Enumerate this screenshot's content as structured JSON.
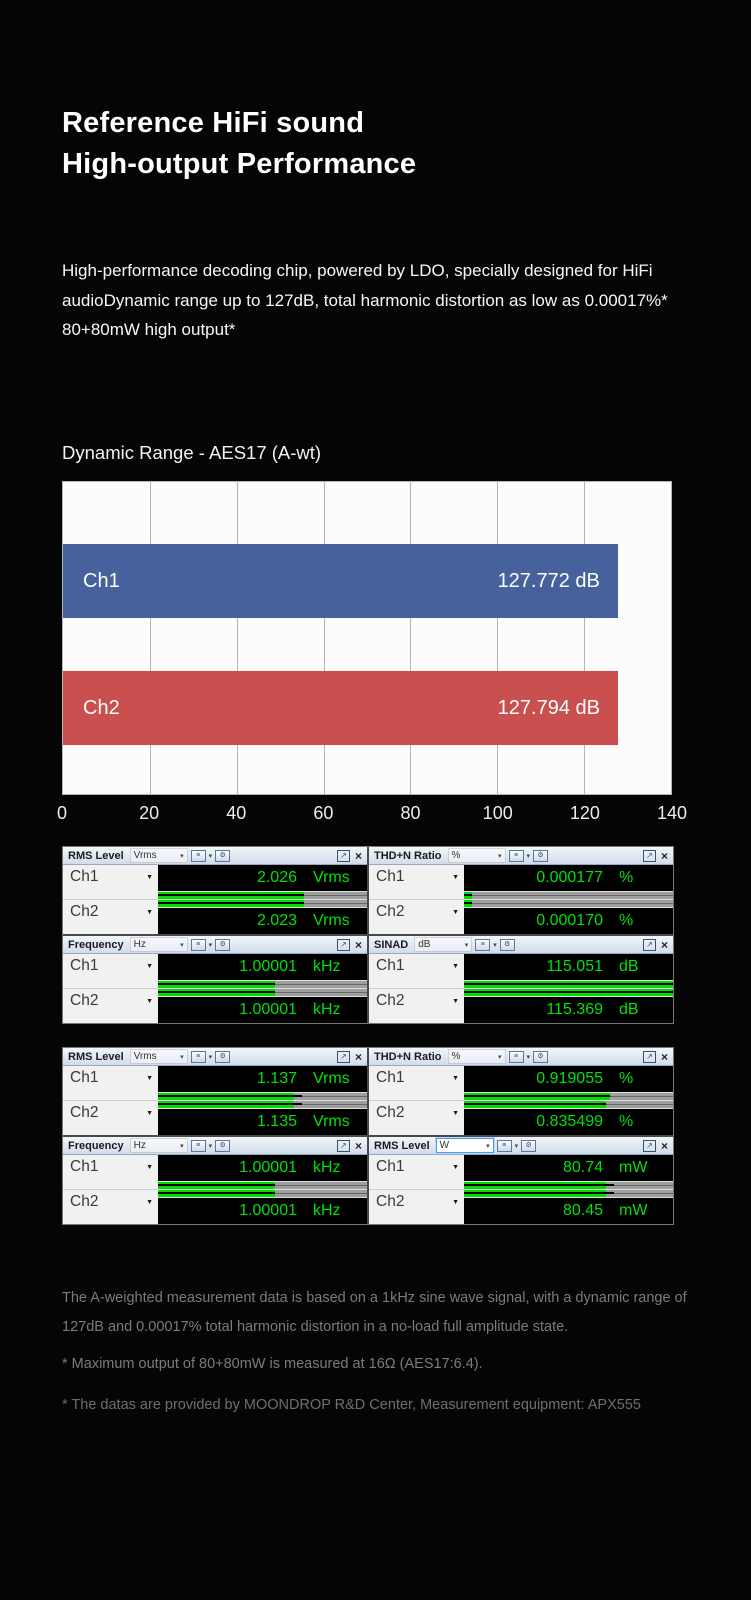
{
  "hero": {
    "title_line1": "Reference HiFi sound",
    "title_line2": "High-output Performance",
    "description": "High-performance decoding chip, powered by LDO, specially designed for HiFi audioDynamic range up to 127dB, total harmonic distortion as low as 0.00017%* 80+80mW high output*"
  },
  "chart_data": {
    "type": "bar",
    "orientation": "horizontal",
    "title": "Dynamic Range - AES17 (A-wt)",
    "categories": [
      "Ch1",
      "Ch2"
    ],
    "values": [
      127.772,
      127.794
    ],
    "value_labels": [
      "127.772 dB",
      "127.794 dB"
    ],
    "bar_colors": [
      "#46619b",
      "#c9504e"
    ],
    "xlabel": "",
    "ylabel": "",
    "xlim": [
      0,
      140
    ],
    "x_ticks": [
      0,
      20,
      40,
      60,
      80,
      100,
      120,
      140
    ],
    "grid": true,
    "plot_bg": "#fcfcfc",
    "legend": "none"
  },
  "meter_groups": [
    {
      "panels": [
        {
          "title": "RMS Level",
          "unit": "Vrms",
          "unit_focused": false,
          "channels": [
            {
              "label": "Ch1",
              "value": "2.026",
              "unit": "Vrms",
              "fill": 70,
              "peak": 70
            },
            {
              "label": "Ch2",
              "value": "2.023",
              "unit": "Vrms",
              "fill": 70,
              "peak": 70
            }
          ]
        },
        {
          "title": "THD+N Ratio",
          "unit": "%",
          "unit_focused": false,
          "channels": [
            {
              "label": "Ch1",
              "value": "0.000177",
              "unit": "%",
              "fill": 4,
              "peak": 4
            },
            {
              "label": "Ch2",
              "value": "0.000170",
              "unit": "%",
              "fill": 4,
              "peak": 4
            }
          ]
        },
        {
          "title": "Frequency",
          "unit": "Hz",
          "unit_focused": false,
          "channels": [
            {
              "label": "Ch1",
              "value": "1.00001",
              "unit": "kHz",
              "fill": 56,
              "peak": 56
            },
            {
              "label": "Ch2",
              "value": "1.00001",
              "unit": "kHz",
              "fill": 56,
              "peak": 56
            }
          ]
        },
        {
          "title": "SINAD",
          "unit": "dB",
          "unit_focused": false,
          "channels": [
            {
              "label": "Ch1",
              "value": "115.051",
              "unit": "dB",
              "fill": 100,
              "peak": 100
            },
            {
              "label": "Ch2",
              "value": "115.369",
              "unit": "dB",
              "fill": 100,
              "peak": 100
            }
          ]
        }
      ]
    },
    {
      "panels": [
        {
          "title": "RMS Level",
          "unit": "Vrms",
          "unit_focused": false,
          "channels": [
            {
              "label": "Ch1",
              "value": "1.137",
              "unit": "Vrms",
              "fill": 65,
              "peak": 69
            },
            {
              "label": "Ch2",
              "value": "1.135",
              "unit": "Vrms",
              "fill": 65,
              "peak": 69
            }
          ]
        },
        {
          "title": "THD+N Ratio",
          "unit": "%",
          "unit_focused": false,
          "channels": [
            {
              "label": "Ch1",
              "value": "0.919055",
              "unit": "%",
              "fill": 70,
              "peak": 70
            },
            {
              "label": "Ch2",
              "value": "0.835499",
              "unit": "%",
              "fill": 68,
              "peak": 68
            }
          ]
        },
        {
          "title": "Frequency",
          "unit": "Hz",
          "unit_focused": false,
          "channels": [
            {
              "label": "Ch1",
              "value": "1.00001",
              "unit": "kHz",
              "fill": 56,
              "peak": 56
            },
            {
              "label": "Ch2",
              "value": "1.00001",
              "unit": "kHz",
              "fill": 56,
              "peak": 56
            }
          ]
        },
        {
          "title": "RMS Level",
          "unit": "W",
          "unit_focused": true,
          "channels": [
            {
              "label": "Ch1",
              "value": "80.74",
              "unit": "mW",
              "fill": 68,
              "peak": 72
            },
            {
              "label": "Ch2",
              "value": "80.45",
              "unit": "mW",
              "fill": 68,
              "peak": 72
            }
          ]
        }
      ]
    }
  ],
  "footnotes": [
    "The A-weighted measurement data is based on a 1kHz sine wave signal, with a dynamic range of 127dB and 0.00017% total harmonic distortion in a no-load full amplitude state.",
    "* Maximum output of 80+80mW is measured at 16Ω (AES17:6.4).",
    "* The datas are provided by MOONDROP R&D Center, Measurement equipment: APX555"
  ],
  "icons": {
    "unit_dropdown_arrow": "▾",
    "channel_dropdown_arrow": "▼",
    "meter_settings_glyph": "≡",
    "gear_glyph": "⚙",
    "popout_glyph": "↗",
    "close_glyph": "×"
  },
  "colors": {
    "ch1_bar": "#46619b",
    "ch2_bar": "#c9504e",
    "meter_green": "#00dc00",
    "readout_green": "#00e00a"
  }
}
